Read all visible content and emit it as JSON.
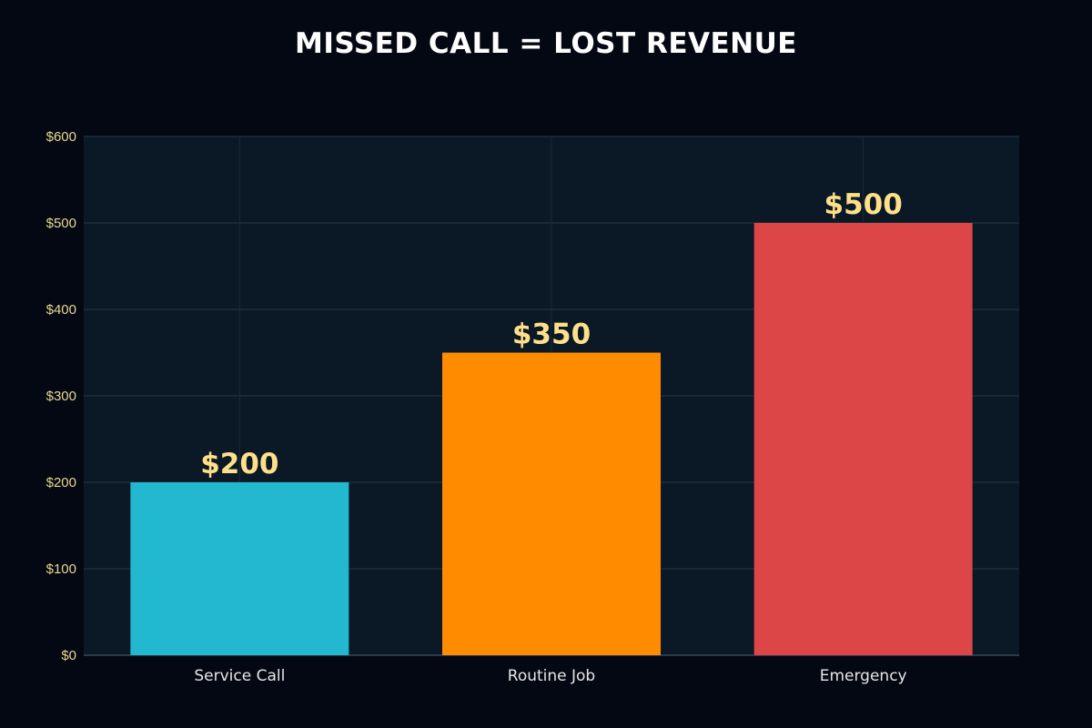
{
  "chart_data": {
    "type": "bar",
    "title": "MISSED CALL = LOST REVENUE",
    "categories": [
      "Service Call",
      "Routine Job",
      "Emergency"
    ],
    "values": [
      200,
      350,
      500
    ],
    "data_labels": [
      "$200",
      "$350",
      "$500"
    ],
    "colors": [
      "#22b8cf",
      "#ff8c00",
      "#dc4646"
    ],
    "ylim": [
      0,
      600
    ],
    "yticks": [
      0,
      100,
      200,
      300,
      400,
      500,
      600
    ],
    "ytick_labels": [
      "$0",
      "$100",
      "$200",
      "$300",
      "$400",
      "$500",
      "$600"
    ],
    "xlabel": "",
    "ylabel": "",
    "grid": true,
    "background": "#0b1826",
    "label_color": "#ffe08a"
  }
}
